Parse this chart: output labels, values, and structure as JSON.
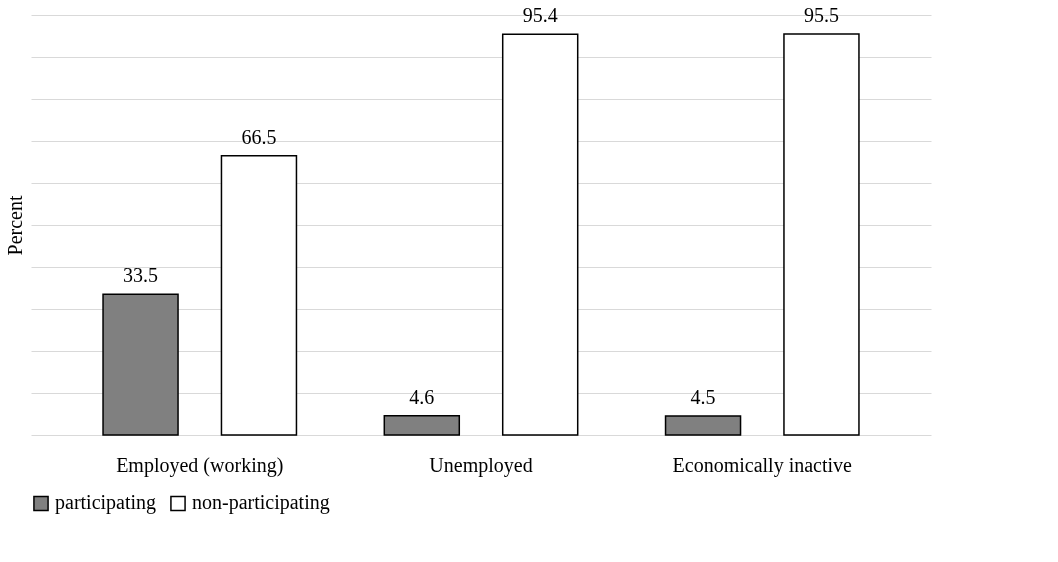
{
  "chart_data": {
    "type": "bar",
    "ylabel": "Percent",
    "categories": [
      "Employed (working)",
      "Unemployed",
      "Economically inactive"
    ],
    "series": [
      {
        "name": "participating",
        "color": "#808080",
        "values": [
          33.5,
          4.6,
          4.5
        ]
      },
      {
        "name": "non-participating",
        "color": "#ffffff",
        "values": [
          66.5,
          95.4,
          95.5
        ]
      }
    ],
    "ylim": [
      0,
      100
    ],
    "yticks": [
      {
        "value": 0,
        "label": null
      },
      {
        "value": 10,
        "label": null
      },
      {
        "value": 20,
        "label": null
      },
      {
        "value": 30,
        "label": null
      },
      {
        "value": 40,
        "label": null
      },
      {
        "value": 50,
        "label": null
      },
      {
        "value": 60,
        "label": null
      },
      {
        "value": 70,
        "label": null
      },
      {
        "value": 80,
        "label": null
      },
      {
        "value": 90,
        "label": null
      },
      {
        "value": 100,
        "label": null
      }
    ],
    "grid": "y",
    "legend": "bottom",
    "data_labels": true
  }
}
